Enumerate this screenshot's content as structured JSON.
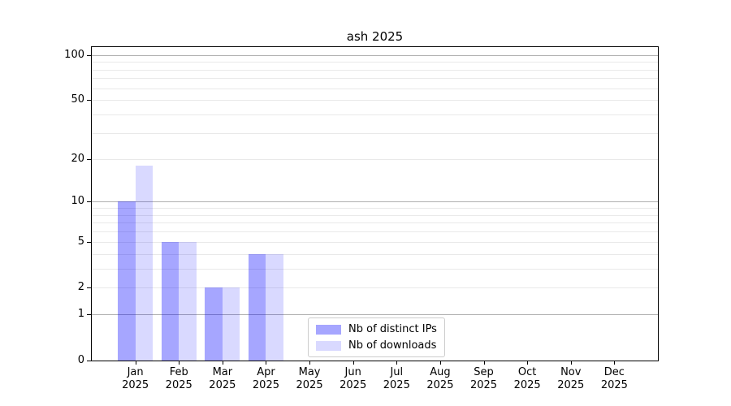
{
  "chart_data": {
    "type": "bar",
    "title": "ash 2025",
    "categories": [
      "Jan 2025",
      "Feb 2025",
      "Mar 2025",
      "Apr 2025",
      "May 2025",
      "Jun 2025",
      "Jul 2025",
      "Aug 2025",
      "Sep 2025",
      "Oct 2025",
      "Nov 2025",
      "Dec 2025"
    ],
    "series": [
      {
        "name": "Nb of distinct IPs",
        "color": "rgba(0,0,255,0.35)",
        "values": [
          10,
          5,
          2,
          4,
          0,
          0,
          0,
          0,
          0,
          0,
          0,
          0
        ]
      },
      {
        "name": "Nb of downloads",
        "color": "rgba(0,0,255,0.15)",
        "values": [
          18,
          5,
          2,
          4,
          0,
          0,
          0,
          0,
          0,
          0,
          0,
          0
        ]
      }
    ],
    "xlabel": "",
    "ylabel": "",
    "y_axis": {
      "scale": "log1p",
      "tick_labels": [
        "0",
        "1",
        "2",
        "5",
        "10",
        "20",
        "50",
        "100"
      ],
      "tick_values": [
        0,
        1,
        2,
        5,
        10,
        20,
        50,
        100
      ],
      "ylim": [
        0,
        113
      ],
      "major_gridlines": [
        1,
        10,
        100
      ],
      "minor_gridlines": [
        2,
        3,
        4,
        5,
        6,
        7,
        8,
        9,
        20,
        30,
        40,
        50,
        60,
        70,
        80,
        90
      ]
    },
    "grid": true,
    "legend": {
      "position": "lower-center-inside"
    }
  },
  "colors": {
    "bar_distinct_ips": "rgba(0,0,255,0.35)",
    "bar_downloads": "rgba(0,0,255,0.15)",
    "major_grid": "#b0b0b0",
    "minor_grid": "#e9e9e9",
    "axis": "#000000",
    "background": "#ffffff",
    "legend_border": "#cccccc"
  }
}
